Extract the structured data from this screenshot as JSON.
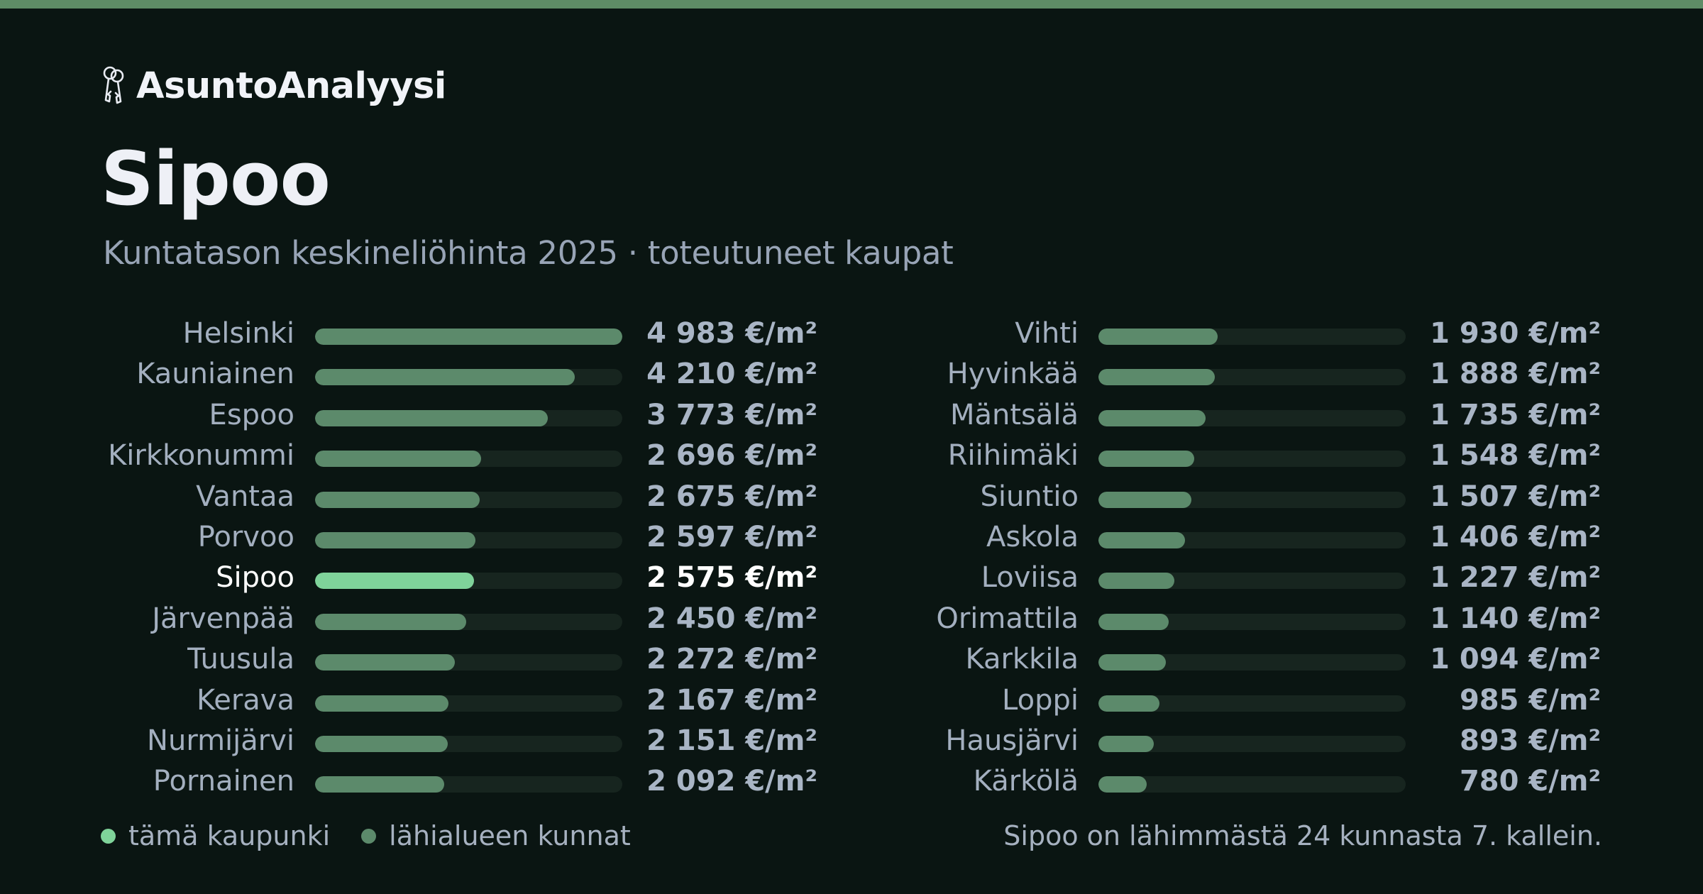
{
  "brand": {
    "name": "AsuntoAnalyysi",
    "icon": "keys-icon"
  },
  "title": "Sipoo",
  "subtitle": "Kuntatason keskineliöhinta 2025 · toteutuneet kaupat",
  "colors": {
    "highlight": "#7fd39a",
    "neighbor": "#5c8a6b",
    "accent_bar": "#5e8c66",
    "track": "#17251f",
    "background": "#0a1512"
  },
  "legend": [
    {
      "label": "tämä kaupunki",
      "color": "#7fd39a"
    },
    {
      "label": "lähialueen kunnat",
      "color": "#5c8a6b"
    }
  ],
  "footnote": "Sipoo on lähimmästä 24 kunnasta 7. kallein.",
  "chart_data": {
    "type": "bar",
    "orientation": "horizontal",
    "unit": "€/m²",
    "highlight": "Sipoo",
    "xlim": [
      0,
      4983
    ],
    "grid": false,
    "categories": [
      "Helsinki",
      "Kauniainen",
      "Espoo",
      "Kirkkonummi",
      "Vantaa",
      "Porvoo",
      "Sipoo",
      "Järvenpää",
      "Tuusula",
      "Kerava",
      "Nurmijärvi",
      "Pornainen",
      "Vihti",
      "Hyvinkää",
      "Mäntsälä",
      "Riihimäki",
      "Siuntio",
      "Askola",
      "Loviisa",
      "Orimattila",
      "Karkkila",
      "Loppi",
      "Hausjärvi",
      "Kärkölä"
    ],
    "values": [
      4983,
      4210,
      3773,
      2696,
      2675,
      2597,
      2575,
      2450,
      2272,
      2167,
      2151,
      2092,
      1930,
      1888,
      1735,
      1548,
      1507,
      1406,
      1227,
      1140,
      1094,
      985,
      893,
      780
    ],
    "value_labels": [
      "4 983 €/m²",
      "4 210 €/m²",
      "3 773 €/m²",
      "2 696 €/m²",
      "2 675 €/m²",
      "2 597 €/m²",
      "2 575 €/m²",
      "2 450 €/m²",
      "2 272 €/m²",
      "2 167 €/m²",
      "2 151 €/m²",
      "2 092 €/m²",
      "1 930 €/m²",
      "1 888 €/m²",
      "1 735 €/m²",
      "1 548 €/m²",
      "1 507 €/m²",
      "1 406 €/m²",
      "1 227 €/m²",
      "1 140 €/m²",
      "1 094 €/m²",
      "985 €/m²",
      "893 €/m²",
      "780 €/m²"
    ]
  }
}
